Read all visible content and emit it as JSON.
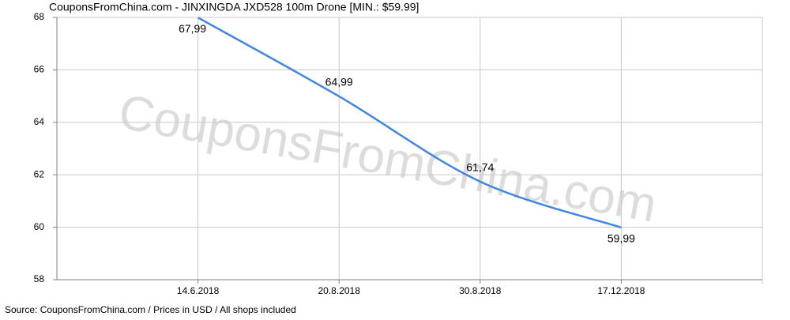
{
  "chart_data": {
    "type": "line",
    "title": "CouponsFromChina.com - JINXINGDA JXD528 100m Drone [MIN.: $59.99]",
    "watermark": "CouponsFromChina.com",
    "source": "Source: CouponsFromChina.com / Prices in USD / All shops included",
    "categories": [
      "14.6.2018",
      "20.8.2018",
      "30.8.2018",
      "17.12.2018"
    ],
    "values": [
      67.99,
      64.99,
      61.74,
      59.99
    ],
    "value_labels": [
      "67,99",
      "64,99",
      "61,74",
      "59,99"
    ],
    "color": "#4286e3",
    "ylim": [
      58,
      68
    ],
    "yticks": [
      58,
      60,
      62,
      64,
      66,
      68
    ],
    "grid": true
  }
}
